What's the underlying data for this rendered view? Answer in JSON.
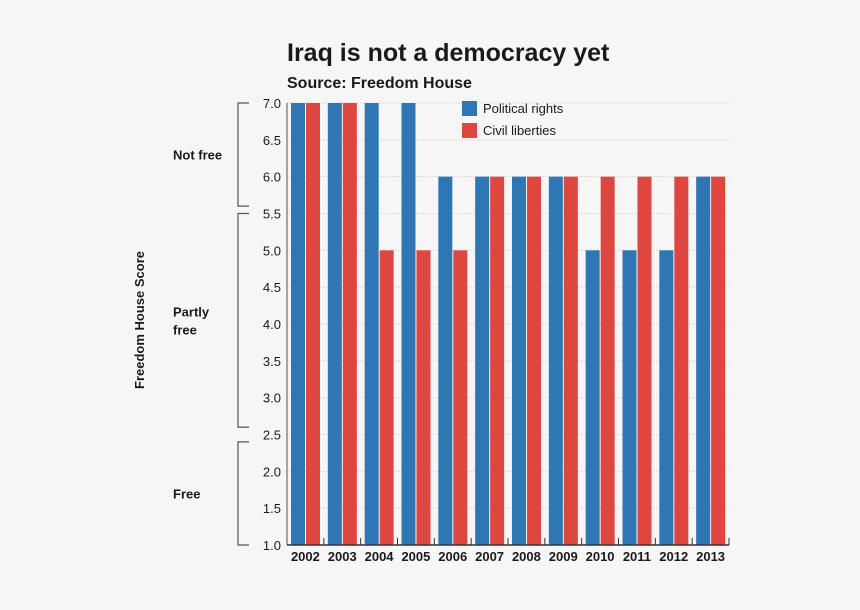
{
  "chart_data": {
    "type": "bar",
    "title": "Iraq is not a democracy yet",
    "subtitle": "Source: Freedom House",
    "xlabel": "",
    "ylabel": "Freedom House Score",
    "ylim": [
      1.0,
      7.0
    ],
    "yticks": [
      "7.0",
      "6.5",
      "6.0",
      "5.5",
      "5.0",
      "4.5",
      "4.0",
      "3.5",
      "3.0",
      "2.5",
      "2.0",
      "1.5",
      "1.0"
    ],
    "grid": true,
    "legend_position": "top-right",
    "categories": [
      "2002",
      "2003",
      "2004",
      "2005",
      "2006",
      "2007",
      "2008",
      "2009",
      "2010",
      "2011",
      "2012",
      "2013"
    ],
    "series": [
      {
        "name": "Political rights",
        "color": "#2f76b5",
        "values": [
          7,
          7,
          7,
          7,
          6,
          6,
          6,
          6,
          5,
          5,
          5,
          6
        ]
      },
      {
        "name": "Civil liberties",
        "color": "#de4640",
        "values": [
          7,
          7,
          5,
          5,
          5,
          6,
          6,
          6,
          6,
          6,
          6,
          6
        ]
      }
    ],
    "bands": [
      {
        "label": "Not free",
        "range": [
          5.6,
          7.0
        ]
      },
      {
        "label": "Partly free",
        "range": [
          2.6,
          5.5
        ]
      },
      {
        "label": "Free",
        "range": [
          1.0,
          2.4
        ]
      }
    ]
  }
}
